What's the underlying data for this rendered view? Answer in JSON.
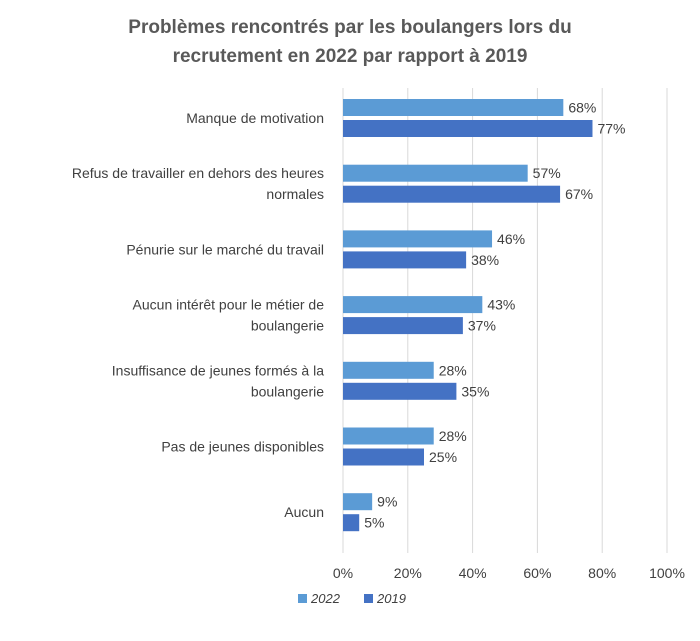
{
  "chart_data": {
    "type": "bar",
    "orientation": "horizontal",
    "title_lines": [
      "Problèmes rencontrés par les boulangers lors du",
      "recrutement en 2022 par rapport à 2019"
    ],
    "categories": [
      [
        "Manque de motivation"
      ],
      [
        "Refus de travailler en dehors des heures",
        "normales"
      ],
      [
        "Pénurie sur le marché du travail"
      ],
      [
        "Aucun intérêt pour le métier de",
        "boulangerie"
      ],
      [
        "Insuffisance de jeunes formés à la",
        "boulangerie"
      ],
      [
        "Pas de jeunes disponibles"
      ],
      [
        "Aucun"
      ]
    ],
    "series": [
      {
        "name": "2022",
        "color": "#5B9BD5",
        "values": [
          68,
          57,
          46,
          43,
          28,
          28,
          9
        ]
      },
      {
        "name": "2019",
        "color": "#4472C4",
        "values": [
          77,
          67,
          38,
          37,
          35,
          25,
          5
        ]
      }
    ],
    "xlim": [
      0,
      100
    ],
    "xticks": [
      "0%",
      "20%",
      "40%",
      "60%",
      "80%",
      "100%"
    ],
    "value_suffix": "%",
    "grid": true,
    "legend_position": "bottom-left"
  }
}
